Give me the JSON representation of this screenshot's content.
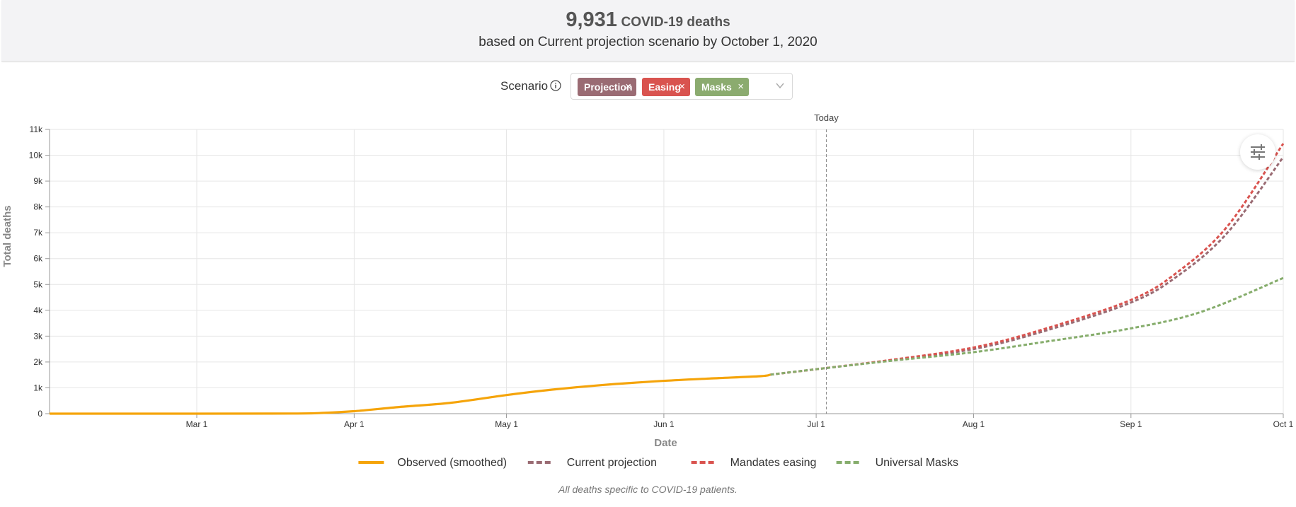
{
  "header": {
    "deaths_number": "9,931",
    "deaths_label": "COVID-19 deaths",
    "subtitle": "based on Current projection scenario by October 1, 2020"
  },
  "scenario": {
    "label": "Scenario",
    "info_icon": "info-circle-icon",
    "tags": [
      {
        "label": "Projection",
        "color": "#9a6b73"
      },
      {
        "label": "Easing",
        "color": "#d9534f"
      },
      {
        "label": "Masks",
        "color": "#8bab6f"
      }
    ],
    "remove_glyph": "×",
    "dropdown_icon": "chevron-down-icon"
  },
  "filter_button_icon": "sliders-icon",
  "footnote": "All deaths specific to COVID-19 patients.",
  "chart_data": {
    "type": "line",
    "title": "",
    "xlabel": "Date",
    "ylabel": "Total deaths",
    "x_range": [
      "2020-02-01",
      "2020-10-01"
    ],
    "ylim": [
      0,
      11000
    ],
    "y_ticks": [
      {
        "value": 0,
        "label": "0"
      },
      {
        "value": 1000,
        "label": "1k"
      },
      {
        "value": 2000,
        "label": "2k"
      },
      {
        "value": 3000,
        "label": "3k"
      },
      {
        "value": 4000,
        "label": "4k"
      },
      {
        "value": 5000,
        "label": "5k"
      },
      {
        "value": 6000,
        "label": "6k"
      },
      {
        "value": 7000,
        "label": "7k"
      },
      {
        "value": 8000,
        "label": "8k"
      },
      {
        "value": 9000,
        "label": "9k"
      },
      {
        "value": 10000,
        "label": "10k"
      },
      {
        "value": 11000,
        "label": "11k"
      }
    ],
    "x_ticks": [
      {
        "date": "2020-03-01",
        "label": "Mar 1"
      },
      {
        "date": "2020-04-01",
        "label": "Apr 1"
      },
      {
        "date": "2020-05-01",
        "label": "May 1"
      },
      {
        "date": "2020-06-01",
        "label": "Jun 1"
      },
      {
        "date": "2020-07-01",
        "label": "Jul 1"
      },
      {
        "date": "2020-08-01",
        "label": "Aug 1"
      },
      {
        "date": "2020-09-01",
        "label": "Sep 1"
      },
      {
        "date": "2020-10-01",
        "label": "Oct 1"
      }
    ],
    "today": {
      "date": "2020-07-03",
      "label": "Today"
    },
    "grid": true,
    "legend_position": "bottom-center",
    "series": [
      {
        "name": "Observed (smoothed)",
        "color": "#f5a40a",
        "dashed": false,
        "points": [
          [
            "2020-02-01",
            0
          ],
          [
            "2020-03-01",
            0
          ],
          [
            "2020-03-20",
            5
          ],
          [
            "2020-03-26",
            30
          ],
          [
            "2020-04-01",
            95
          ],
          [
            "2020-04-10",
            260
          ],
          [
            "2020-04-20",
            420
          ],
          [
            "2020-05-01",
            720
          ],
          [
            "2020-05-10",
            930
          ],
          [
            "2020-05-20",
            1110
          ],
          [
            "2020-06-01",
            1270
          ],
          [
            "2020-06-10",
            1360
          ],
          [
            "2020-06-20",
            1450
          ],
          [
            "2020-06-22",
            1510
          ]
        ]
      },
      {
        "name": "Current projection",
        "color": "#9a6b73",
        "dashed": true,
        "points": [
          [
            "2020-06-22",
            1510
          ],
          [
            "2020-07-01",
            1720
          ],
          [
            "2020-07-15",
            2050
          ],
          [
            "2020-08-01",
            2500
          ],
          [
            "2020-08-15",
            3200
          ],
          [
            "2020-09-01",
            4300
          ],
          [
            "2020-09-10",
            5300
          ],
          [
            "2020-09-20",
            7000
          ],
          [
            "2020-10-01",
            9931
          ]
        ]
      },
      {
        "name": "Mandates easing",
        "color": "#d9534f",
        "dashed": true,
        "points": [
          [
            "2020-06-22",
            1510
          ],
          [
            "2020-07-01",
            1720
          ],
          [
            "2020-07-15",
            2060
          ],
          [
            "2020-08-01",
            2560
          ],
          [
            "2020-08-15",
            3280
          ],
          [
            "2020-09-01",
            4400
          ],
          [
            "2020-09-10",
            5450
          ],
          [
            "2020-09-20",
            7250
          ],
          [
            "2020-10-01",
            10450
          ]
        ]
      },
      {
        "name": "Universal Masks",
        "color": "#86ad6c",
        "dashed": true,
        "points": [
          [
            "2020-06-22",
            1510
          ],
          [
            "2020-07-01",
            1720
          ],
          [
            "2020-07-15",
            2030
          ],
          [
            "2020-08-01",
            2380
          ],
          [
            "2020-08-15",
            2780
          ],
          [
            "2020-09-01",
            3300
          ],
          [
            "2020-09-15",
            3950
          ],
          [
            "2020-10-01",
            5250
          ]
        ]
      }
    ]
  }
}
